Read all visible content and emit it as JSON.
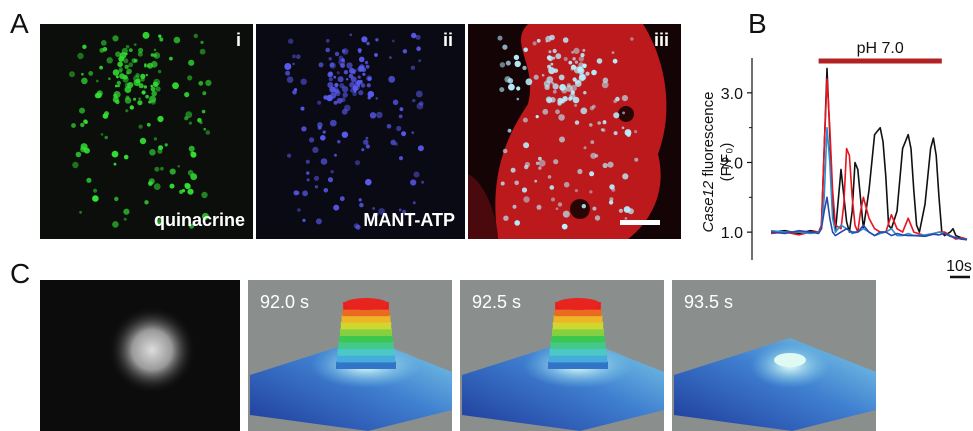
{
  "panels": {
    "A": "A",
    "B": "B",
    "C": "C"
  },
  "panel_a": {
    "images": [
      {
        "numeral": "i",
        "label": "quinacrine",
        "dot_color": "#33e033"
      },
      {
        "numeral": "ii",
        "label": "MANT-ATP",
        "dot_color": "#5a5af0"
      },
      {
        "numeral": "iii",
        "label": "",
        "dot_color": "#b8f0ff"
      }
    ]
  },
  "chart_data": {
    "type": "line",
    "bar_label": "pH 7.0",
    "ylabel_italic": "Case12",
    "ylabel_rest": " fluorescence",
    "ylabel_units": "(F/F₀)",
    "y_ticks": [
      "1.0",
      "2.0",
      "3.0"
    ],
    "ylim": [
      0.6,
      3.5
    ],
    "time_scale_label": "10s",
    "series": [
      {
        "color": "#111111",
        "x": [
          0,
          5,
          10,
          14,
          17,
          18,
          19,
          20,
          21,
          22,
          23,
          25,
          27,
          28,
          29,
          30,
          31,
          33,
          35,
          37,
          39,
          40,
          41,
          42,
          43,
          45,
          47,
          49,
          50,
          51,
          52,
          53,
          55,
          57,
          58,
          59,
          60,
          61,
          62,
          64,
          65,
          66,
          68,
          70
        ],
        "y": [
          1.0,
          1.02,
          0.98,
          1.02,
          1.0,
          1.05,
          2.2,
          3.35,
          2.4,
          1.4,
          1.0,
          1.9,
          1.15,
          1.0,
          1.3,
          2.0,
          1.9,
          1.05,
          1.6,
          2.4,
          2.5,
          2.3,
          1.8,
          1.1,
          1.05,
          1.3,
          2.2,
          2.4,
          2.2,
          1.6,
          1.1,
          1.0,
          1.4,
          2.2,
          2.35,
          2.1,
          1.5,
          1.0,
          0.95,
          1.0,
          1.05,
          0.95,
          0.92,
          0.9
        ]
      },
      {
        "color": "#e8141e",
        "x": [
          0,
          5,
          10,
          14,
          17,
          18,
          19,
          20,
          21,
          22,
          23,
          25,
          26,
          27,
          28,
          29,
          30,
          31,
          32,
          33,
          35,
          37,
          39,
          41,
          43,
          45,
          47,
          49,
          51,
          55,
          58,
          60,
          62,
          64,
          66,
          68,
          70
        ],
        "y": [
          0.98,
          1.0,
          0.96,
          1.0,
          1.0,
          1.1,
          2.2,
          3.2,
          2.5,
          1.6,
          1.1,
          1.05,
          1.4,
          2.2,
          2.1,
          1.5,
          1.1,
          1.0,
          1.3,
          1.5,
          1.2,
          1.05,
          1.0,
          1.0,
          1.25,
          1.05,
          1.0,
          1.2,
          1.0,
          0.95,
          0.98,
          1.0,
          1.0,
          0.95,
          0.9,
          0.92,
          0.9
        ]
      },
      {
        "color": "#2a8fd0",
        "x": [
          0,
          5,
          10,
          14,
          17,
          18,
          19,
          20,
          21,
          22,
          23,
          25,
          27,
          29,
          31,
          33,
          35,
          37,
          39,
          41,
          43,
          45,
          47,
          49,
          51,
          55,
          58,
          60,
          62,
          64,
          66,
          68,
          70
        ],
        "y": [
          1.02,
          1.0,
          1.0,
          0.98,
          1.0,
          1.05,
          1.5,
          2.5,
          2.0,
          1.2,
          1.0,
          1.1,
          1.05,
          0.98,
          1.0,
          1.05,
          1.0,
          0.95,
          0.98,
          1.0,
          1.05,
          0.95,
          0.95,
          0.98,
          0.95,
          0.96,
          0.98,
          1.0,
          0.98,
          0.95,
          0.92,
          0.9,
          0.9
        ]
      },
      {
        "color": "#2b48a8",
        "x": [
          0,
          5,
          10,
          14,
          17,
          18,
          19,
          20,
          21,
          22,
          23,
          25,
          27,
          29,
          31,
          33,
          35,
          37,
          39,
          41,
          43,
          45,
          47,
          49,
          51,
          55,
          58,
          60,
          62,
          64,
          66,
          68,
          70
        ],
        "y": [
          1.0,
          0.98,
          1.02,
          1.0,
          0.98,
          1.05,
          1.3,
          1.5,
          1.2,
          1.0,
          0.95,
          1.0,
          1.05,
          1.0,
          1.0,
          1.1,
          1.0,
          0.95,
          1.0,
          1.0,
          0.95,
          0.98,
          0.96,
          0.95,
          0.95,
          0.94,
          0.97,
          0.96,
          0.98,
          0.94,
          0.92,
          0.9,
          0.89
        ]
      }
    ]
  },
  "panel_c": {
    "frames": [
      {
        "time": "",
        "peak": 0
      },
      {
        "time": "92.0 s",
        "peak": 1.0
      },
      {
        "time": "92.5 s",
        "peak": 1.0
      },
      {
        "time": "93.5 s",
        "peak": 0.3
      }
    ]
  }
}
